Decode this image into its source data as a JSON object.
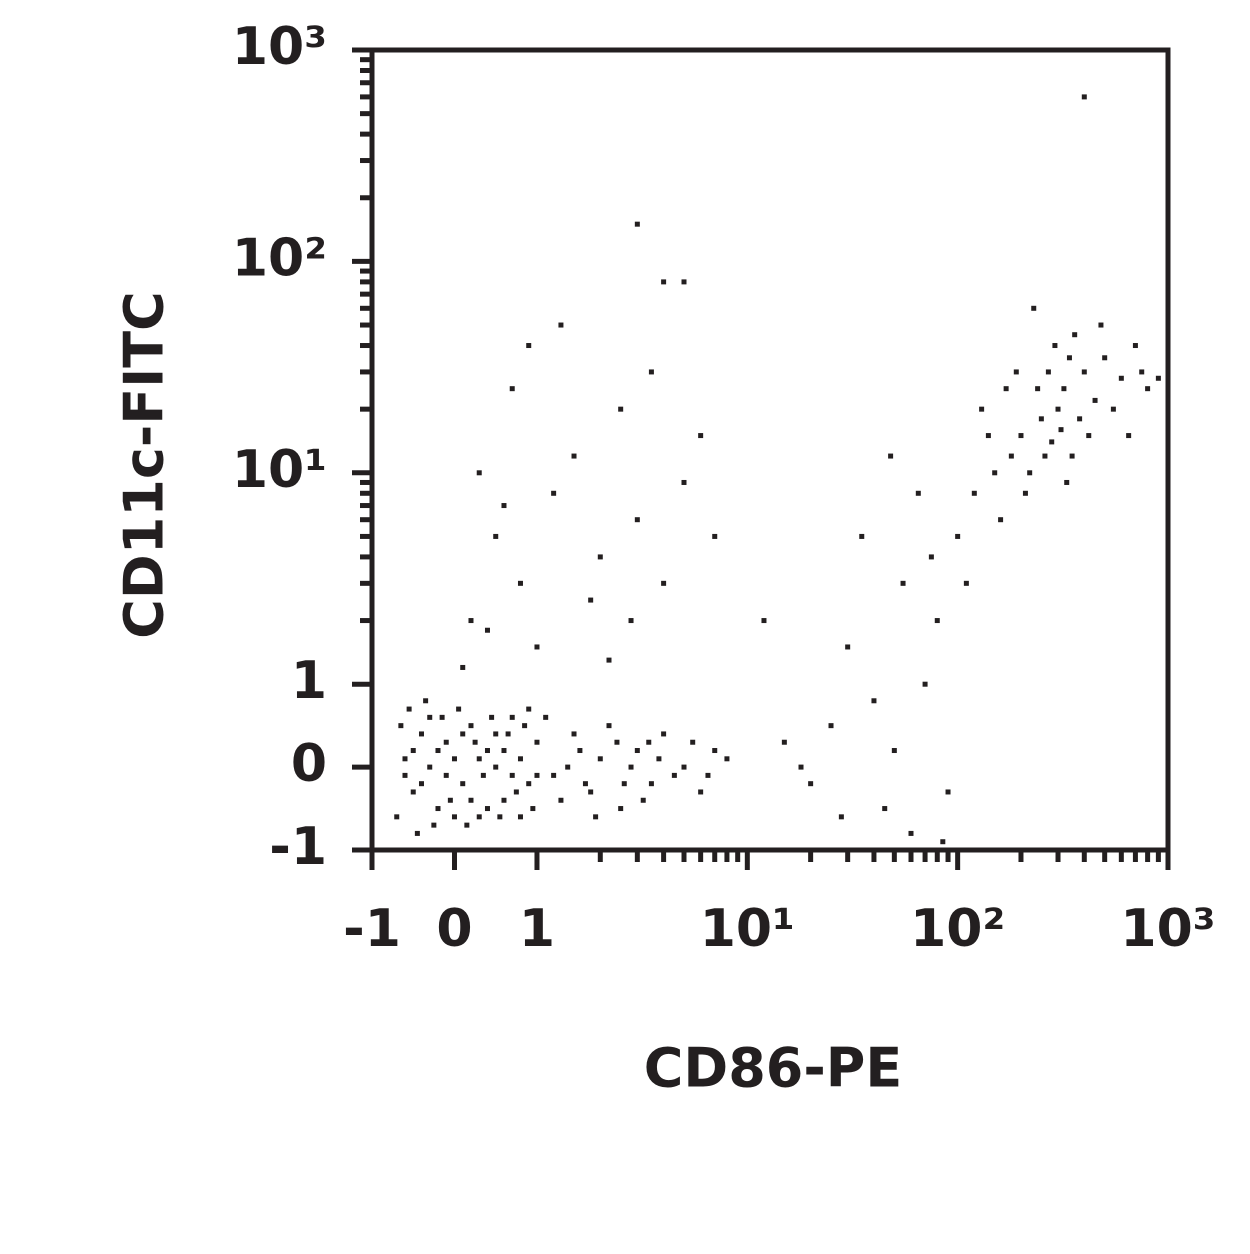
{
  "chart_data": {
    "type": "scatter",
    "x_label": "CD86-PE",
    "y_label": "CD11c-FITC",
    "xscale": "biexponential",
    "yscale": "biexponential",
    "color": "#231f20",
    "xlim": [
      -1,
      1000
    ],
    "ylim": [
      -1,
      1000
    ],
    "xticks": [
      -1,
      0,
      1,
      {
        "value": 10,
        "label": "10¹"
      },
      {
        "value": 100,
        "label": "10²"
      },
      {
        "value": 1000,
        "label": "10³"
      }
    ],
    "yticks": [
      -1,
      0,
      1,
      {
        "value": 10,
        "label": "10¹"
      },
      {
        "value": 100,
        "label": "10²"
      },
      {
        "value": 1000,
        "label": "10³"
      }
    ],
    "xminorticks": [
      2,
      3,
      4,
      5,
      6,
      7,
      8,
      9,
      20,
      30,
      40,
      50,
      60,
      70,
      80,
      90,
      200,
      300,
      400,
      500,
      600,
      700,
      800,
      900
    ],
    "yminorticks": [
      2,
      3,
      4,
      5,
      6,
      7,
      8,
      9,
      20,
      30,
      40,
      50,
      60,
      70,
      80,
      90,
      200,
      300,
      400,
      500,
      600,
      700,
      800,
      900
    ],
    "x": [
      -0.6,
      -0.5,
      -0.4,
      -0.3,
      -0.2,
      -0.1,
      0,
      0.1,
      0.2,
      0.3,
      0.4,
      0.5,
      0.6,
      0.7,
      0.8,
      0.9,
      1.0,
      1.2,
      1.5,
      1.8,
      2.0,
      2.5,
      3,
      3.5,
      4,
      5,
      6,
      7,
      -0.7,
      -0.65,
      -0.55,
      -0.45,
      -0.35,
      -0.25,
      -0.15,
      -0.05,
      0.05,
      0.15,
      0.25,
      0.35,
      0.45,
      0.55,
      0.65,
      0.75,
      0.85,
      0.95,
      1.1,
      1.3,
      1.6,
      1.9,
      2.2,
      2.8,
      3.2,
      3.8,
      4.5,
      5.5,
      6.5,
      8,
      -0.6,
      -0.5,
      -0.4,
      -0.3,
      -0.2,
      -0.1,
      0,
      0.1,
      0.2,
      0.3,
      0.4,
      0.5,
      0.6,
      0.7,
      0.8,
      0.9,
      1.0,
      1.4,
      1.7,
      2.4,
      2.6,
      3.4,
      0.2,
      0.5,
      0.8,
      1.2,
      1.5,
      2,
      2.5,
      3,
      0.3,
      0.7,
      1,
      1.8,
      4,
      5,
      6,
      0.1,
      0.4,
      0.9,
      3.5,
      2.2,
      1.3,
      4,
      0.6,
      2.8,
      7,
      15,
      20,
      25,
      30,
      40,
      45,
      50,
      55,
      60,
      70,
      80,
      35,
      90,
      65,
      12,
      18,
      28,
      75,
      48,
      85,
      100,
      120,
      150,
      180,
      200,
      220,
      250,
      280,
      300,
      320,
      350,
      400,
      450,
      500,
      600,
      700,
      800,
      130,
      160,
      190,
      210,
      240,
      260,
      290,
      310,
      330,
      360,
      380,
      420,
      480,
      550,
      650,
      750,
      110,
      140,
      170,
      230,
      270,
      340,
      900,
      400,
      3,
      5
    ],
    "values": [
      0.1,
      -0.3,
      0.4,
      0.0,
      -0.5,
      0.3,
      0.1,
      -0.2,
      0.5,
      -0.6,
      0.2,
      0.0,
      -0.4,
      0.6,
      0.1,
      -0.2,
      0.3,
      -0.1,
      0.4,
      -0.3,
      0.1,
      -0.5,
      0.2,
      -0.2,
      0.4,
      0.0,
      -0.3,
      0.2,
      -0.6,
      0.5,
      0.7,
      -0.8,
      0.8,
      -0.7,
      0.6,
      -0.4,
      0.7,
      -0.7,
      0.3,
      -0.1,
      0.6,
      -0.6,
      0.4,
      -0.3,
      0.5,
      -0.5,
      0.6,
      -0.4,
      0.2,
      -0.6,
      0.5,
      0.0,
      -0.4,
      0.1,
      -0.1,
      0.3,
      -0.1,
      0.1,
      -0.1,
      0.2,
      -0.2,
      0.6,
      0.2,
      -0.1,
      -0.6,
      0.4,
      -0.4,
      0.1,
      -0.5,
      0.4,
      0.2,
      -0.1,
      -0.6,
      0.7,
      -0.1,
      0.0,
      -0.2,
      0.3,
      -0.2,
      0.3,
      2,
      5,
      3,
      8,
      12,
      4,
      20,
      6,
      10,
      25,
      1.5,
      2.5,
      3,
      9,
      15,
      1.2,
      1.8,
      40,
      30,
      1.3,
      50,
      80,
      7,
      2,
      5,
      0.3,
      -0.2,
      0.5,
      1.5,
      0.8,
      -0.5,
      0.2,
      3,
      -0.8,
      1,
      2,
      5,
      -0.3,
      8,
      2,
      0.0,
      -0.6,
      4,
      12,
      -0.9,
      5,
      8,
      10,
      12,
      15,
      10,
      18,
      14,
      20,
      25,
      12,
      30,
      22,
      35,
      28,
      40,
      25,
      20,
      6,
      30,
      8,
      25,
      12,
      40,
      16,
      9,
      45,
      18,
      15,
      50,
      20,
      15,
      30,
      3,
      15,
      25,
      60,
      30,
      35,
      28,
      600,
      150,
      80
    ]
  }
}
